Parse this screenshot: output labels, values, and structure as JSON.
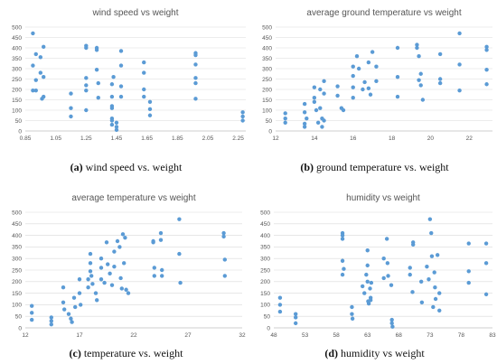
{
  "captions": [
    {
      "tag": "(a)",
      "text": "wind speed vs. weight"
    },
    {
      "tag": "(b)",
      "text": "ground temperature vs. weight"
    },
    {
      "tag": "(c)",
      "text": "temperature vs. weight"
    },
    {
      "tag": "(d)",
      "text": "humidity vs weight"
    }
  ],
  "colors": {
    "marker": "#5b9bd5",
    "grid": "#d9d9d9"
  },
  "chart_data": [
    {
      "type": "scatter",
      "title": "wind speed vs weight",
      "xlabel": "",
      "ylabel": "",
      "xlim": [
        0.85,
        2.3
      ],
      "ylim": [
        0,
        500
      ],
      "xticks": [
        "0.85",
        "1.05",
        "1.25",
        "1.45",
        "1.65",
        "1.85",
        "2.05",
        "2.25"
      ],
      "yticks": [
        "0",
        "50",
        "100",
        "150",
        "200",
        "250",
        "300",
        "350",
        "400",
        "450",
        "500"
      ],
      "grid": true,
      "points": [
        [
          0.9,
          470
        ],
        [
          0.9,
          315
        ],
        [
          0.9,
          195
        ],
        [
          0.92,
          370
        ],
        [
          0.92,
          245
        ],
        [
          0.92,
          195
        ],
        [
          0.95,
          355
        ],
        [
          0.95,
          280
        ],
        [
          0.96,
          155
        ],
        [
          0.97,
          405
        ],
        [
          0.97,
          260
        ],
        [
          0.97,
          165
        ],
        [
          1.15,
          180
        ],
        [
          1.15,
          110
        ],
        [
          1.15,
          70
        ],
        [
          1.25,
          410
        ],
        [
          1.25,
          400
        ],
        [
          1.25,
          255
        ],
        [
          1.25,
          220
        ],
        [
          1.25,
          195
        ],
        [
          1.25,
          100
        ],
        [
          1.32,
          400
        ],
        [
          1.32,
          390
        ],
        [
          1.32,
          295
        ],
        [
          1.33,
          230
        ],
        [
          1.33,
          160
        ],
        [
          1.42,
          225
        ],
        [
          1.42,
          165
        ],
        [
          1.42,
          120
        ],
        [
          1.42,
          110
        ],
        [
          1.42,
          60
        ],
        [
          1.42,
          50
        ],
        [
          1.42,
          30
        ],
        [
          1.43,
          260
        ],
        [
          1.45,
          40
        ],
        [
          1.45,
          20
        ],
        [
          1.45,
          5
        ],
        [
          1.48,
          385
        ],
        [
          1.48,
          315
        ],
        [
          1.48,
          215
        ],
        [
          1.48,
          165
        ],
        [
          1.63,
          330
        ],
        [
          1.63,
          280
        ],
        [
          1.63,
          200
        ],
        [
          1.63,
          165
        ],
        [
          1.67,
          140
        ],
        [
          1.67,
          105
        ],
        [
          1.67,
          75
        ],
        [
          1.97,
          375
        ],
        [
          1.97,
          365
        ],
        [
          1.97,
          320
        ],
        [
          1.97,
          255
        ],
        [
          1.97,
          230
        ],
        [
          1.97,
          155
        ],
        [
          2.28,
          90
        ],
        [
          2.28,
          70
        ],
        [
          2.28,
          50
        ]
      ]
    },
    {
      "type": "scatter",
      "title": "average ground temperature vs weight",
      "xlabel": "",
      "ylabel": "",
      "xlim": [
        12,
        23.2
      ],
      "ylim": [
        0,
        500
      ],
      "xticks": [
        "12",
        "14",
        "16",
        "18",
        "20",
        "22"
      ],
      "yticks": [
        "0",
        "50",
        "100",
        "150",
        "200",
        "250",
        "300",
        "350",
        "400",
        "450",
        "500"
      ],
      "grid": true,
      "points": [
        [
          12.5,
          85
        ],
        [
          12.5,
          60
        ],
        [
          12.5,
          40
        ],
        [
          13.5,
          130
        ],
        [
          13.5,
          90
        ],
        [
          13.5,
          35
        ],
        [
          13.5,
          20
        ],
        [
          13.6,
          60
        ],
        [
          14,
          210
        ],
        [
          14,
          160
        ],
        [
          14,
          140
        ],
        [
          14.1,
          100
        ],
        [
          14.2,
          40
        ],
        [
          14.3,
          200
        ],
        [
          14.3,
          110
        ],
        [
          14.4,
          60
        ],
        [
          14.4,
          20
        ],
        [
          14.5,
          240
        ],
        [
          14.5,
          180
        ],
        [
          14.5,
          50
        ],
        [
          15.2,
          215
        ],
        [
          15.2,
          170
        ],
        [
          15.4,
          110
        ],
        [
          15.5,
          100
        ],
        [
          16,
          310
        ],
        [
          16,
          265
        ],
        [
          16,
          210
        ],
        [
          16,
          160
        ],
        [
          16.2,
          360
        ],
        [
          16.3,
          300
        ],
        [
          16.5,
          200
        ],
        [
          16.6,
          235
        ],
        [
          16.8,
          330
        ],
        [
          16.8,
          205
        ],
        [
          16.9,
          175
        ],
        [
          17,
          380
        ],
        [
          17.2,
          310
        ],
        [
          17.2,
          240
        ],
        [
          18.3,
          400
        ],
        [
          18.3,
          260
        ],
        [
          18.3,
          165
        ],
        [
          19.3,
          415
        ],
        [
          19.3,
          400
        ],
        [
          19.4,
          360
        ],
        [
          19.4,
          245
        ],
        [
          19.5,
          275
        ],
        [
          19.5,
          220
        ],
        [
          19.6,
          150
        ],
        [
          20.5,
          370
        ],
        [
          20.5,
          250
        ],
        [
          20.5,
          230
        ],
        [
          21.5,
          470
        ],
        [
          21.5,
          320
        ],
        [
          21.5,
          195
        ],
        [
          22.9,
          405
        ],
        [
          22.9,
          390
        ],
        [
          22.9,
          295
        ],
        [
          22.9,
          225
        ]
      ]
    },
    {
      "type": "scatter",
      "title": "average temperature vs weight",
      "xlabel": "",
      "ylabel": "",
      "xlim": [
        12,
        32
      ],
      "ylim": [
        0,
        500
      ],
      "xticks": [
        "12",
        "17",
        "22",
        "27",
        "32"
      ],
      "yticks": [
        "0",
        "50",
        "100",
        "150",
        "200",
        "250",
        "300",
        "350",
        "400",
        "450",
        "500"
      ],
      "grid": true,
      "points": [
        [
          12.6,
          95
        ],
        [
          12.6,
          65
        ],
        [
          12.6,
          35
        ],
        [
          14.4,
          45
        ],
        [
          14.4,
          30
        ],
        [
          14.4,
          15
        ],
        [
          15.5,
          175
        ],
        [
          15.5,
          110
        ],
        [
          15.6,
          80
        ],
        [
          16,
          60
        ],
        [
          16.2,
          40
        ],
        [
          16.3,
          25
        ],
        [
          16.5,
          130
        ],
        [
          16.6,
          90
        ],
        [
          17,
          210
        ],
        [
          17,
          150
        ],
        [
          17.1,
          100
        ],
        [
          17.8,
          210
        ],
        [
          17.8,
          175
        ],
        [
          18,
          320
        ],
        [
          18,
          280
        ],
        [
          18,
          245
        ],
        [
          18.1,
          225
        ],
        [
          18.2,
          190
        ],
        [
          18.5,
          150
        ],
        [
          18.6,
          120
        ],
        [
          19,
          300
        ],
        [
          19,
          260
        ],
        [
          19,
          210
        ],
        [
          19.3,
          195
        ],
        [
          19.5,
          370
        ],
        [
          19.6,
          275
        ],
        [
          19.8,
          235
        ],
        [
          20,
          185
        ],
        [
          20.2,
          330
        ],
        [
          20.2,
          265
        ],
        [
          20.5,
          375
        ],
        [
          20.7,
          350
        ],
        [
          20.8,
          215
        ],
        [
          20.9,
          170
        ],
        [
          21,
          405
        ],
        [
          21.1,
          280
        ],
        [
          21.2,
          390
        ],
        [
          21.3,
          165
        ],
        [
          21.5,
          150
        ],
        [
          23.8,
          375
        ],
        [
          23.8,
          370
        ],
        [
          23.9,
          260
        ],
        [
          23.9,
          225
        ],
        [
          24.5,
          410
        ],
        [
          24.5,
          380
        ],
        [
          24.6,
          250
        ],
        [
          24.6,
          225
        ],
        [
          26.2,
          470
        ],
        [
          26.2,
          320
        ],
        [
          26.3,
          195
        ],
        [
          30.3,
          410
        ],
        [
          30.3,
          395
        ],
        [
          30.4,
          295
        ],
        [
          30.4,
          225
        ]
      ]
    },
    {
      "type": "scatter",
      "title": "humidity vs weight",
      "xlabel": "",
      "ylabel": "",
      "xlim": [
        48,
        83
      ],
      "ylim": [
        0,
        500
      ],
      "xticks": [
        "48",
        "53",
        "58",
        "63",
        "68",
        "73",
        "78",
        "83"
      ],
      "yticks": [
        "0",
        "50",
        "100",
        "150",
        "200",
        "250",
        "300",
        "350",
        "400",
        "450",
        "500"
      ],
      "grid": true,
      "points": [
        [
          49,
          130
        ],
        [
          49,
          100
        ],
        [
          49,
          70
        ],
        [
          51.5,
          60
        ],
        [
          51.5,
          45
        ],
        [
          51.5,
          20
        ],
        [
          59,
          410
        ],
        [
          59,
          400
        ],
        [
          59,
          385
        ],
        [
          59,
          290
        ],
        [
          59,
          230
        ],
        [
          59.2,
          255
        ],
        [
          60.5,
          90
        ],
        [
          60.5,
          60
        ],
        [
          60.6,
          40
        ],
        [
          62.2,
          180
        ],
        [
          62.5,
          150
        ],
        [
          62.8,
          230
        ],
        [
          63,
          335
        ],
        [
          63,
          270
        ],
        [
          63,
          200
        ],
        [
          63.1,
          115
        ],
        [
          63.2,
          105
        ],
        [
          63.4,
          170
        ],
        [
          63.5,
          130
        ],
        [
          63.5,
          120
        ],
        [
          63.6,
          195
        ],
        [
          65.6,
          300
        ],
        [
          65.6,
          215
        ],
        [
          66.1,
          385
        ],
        [
          66.2,
          280
        ],
        [
          66.3,
          225
        ],
        [
          66.8,
          185
        ],
        [
          66.9,
          35
        ],
        [
          66.9,
          20
        ],
        [
          67,
          5
        ],
        [
          69.8,
          260
        ],
        [
          69.8,
          230
        ],
        [
          70.2,
          155
        ],
        [
          70.3,
          370
        ],
        [
          70.3,
          360
        ],
        [
          71.6,
          200
        ],
        [
          71.7,
          110
        ],
        [
          72.5,
          265
        ],
        [
          72.8,
          210
        ],
        [
          73,
          470
        ],
        [
          73.2,
          410
        ],
        [
          73.3,
          310
        ],
        [
          73.5,
          90
        ],
        [
          73.7,
          240
        ],
        [
          73.8,
          175
        ],
        [
          73.9,
          125
        ],
        [
          74.2,
          315
        ],
        [
          74.5,
          150
        ],
        [
          74.5,
          75
        ],
        [
          79.2,
          365
        ],
        [
          79.2,
          245
        ],
        [
          79.2,
          195
        ],
        [
          82,
          365
        ],
        [
          82,
          280
        ],
        [
          82,
          145
        ]
      ]
    }
  ]
}
